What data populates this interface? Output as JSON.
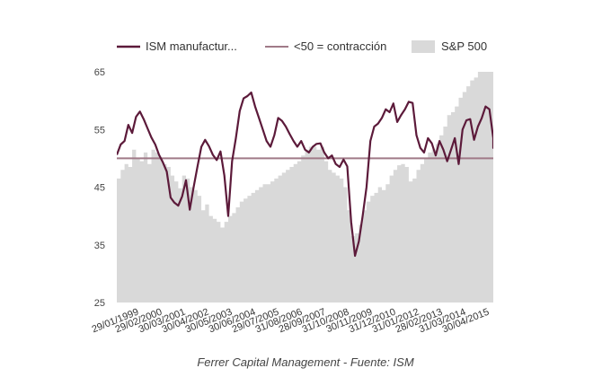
{
  "chart_data": {
    "type": "line",
    "title": "",
    "xlabel": "",
    "ylabel": "",
    "ylim": [
      25,
      65
    ],
    "yticks": [
      65,
      55,
      45,
      35,
      25
    ],
    "grid": false,
    "legend_placement": "top",
    "footer": "Ferrer Capital Management - Fuente: ISM",
    "x_tick_labels": [
      "29/01/1999",
      "29/02/2000",
      "30/03/2001",
      "30/04/2002",
      "30/05/2003",
      "30/06/2004",
      "29/07/2005",
      "31/08/2006",
      "28/09/2007",
      "31/10/2008",
      "30/11/2009",
      "31/12/2010",
      "31/01/2012",
      "28/02/2013",
      "31/03/2014",
      "30/04/2015"
    ],
    "x_start": "1999-01",
    "x_end": "2015-05",
    "colors": {
      "ism": "#5c1a3a",
      "threshold": "#a07a88",
      "sp500": "#d9d9d9"
    },
    "legend": [
      {
        "name": "ISM manufactur...",
        "kind": "line",
        "color": "#5c1a3a"
      },
      {
        "name": "<50 = contracción",
        "kind": "line",
        "color": "#a07a88"
      },
      {
        "name": "S&P 500",
        "kind": "area",
        "color": "#d9d9d9"
      }
    ],
    "threshold": {
      "name": "<50 = contracción",
      "value": 50
    },
    "series": [
      {
        "name": "ISM manufactur...",
        "type": "line",
        "note": "monthly values from 1999-01, every 2 months",
        "step_months": 2,
        "values": [
          50.6,
          52.4,
          53.0,
          55.8,
          54.4,
          57.2,
          58.1,
          56.8,
          55.2,
          53.6,
          52.4,
          50.6,
          49.3,
          47.7,
          43.2,
          42.3,
          41.8,
          43.4,
          46.2,
          41.1,
          45.0,
          48.6,
          52.0,
          53.2,
          52.1,
          50.6,
          49.7,
          51.2,
          47.0,
          40.0,
          49.5,
          53.5,
          58.2,
          60.4,
          60.8,
          61.4,
          59.0,
          57.0,
          55.0,
          53.0,
          52.0,
          54.0,
          57.0,
          56.5,
          55.5,
          54.2,
          53.0,
          52.0,
          53.0,
          51.5,
          51.0,
          52.0,
          52.5,
          52.6,
          51.0,
          50.0,
          50.5,
          49.0,
          48.5,
          49.8,
          48.6,
          39.0,
          33.1,
          35.6,
          40.0,
          45.0,
          53.0,
          55.5,
          56.0,
          57.0,
          58.5,
          58.0,
          59.5,
          56.3,
          57.5,
          58.5,
          59.8,
          59.6,
          54.0,
          51.8,
          51.0,
          53.5,
          52.6,
          50.5,
          53.0,
          51.5,
          49.5,
          51.5,
          53.5,
          49.0,
          55.0,
          56.6,
          56.8,
          53.2,
          55.5,
          57.0,
          59.0,
          58.5,
          53.5,
          51.8,
          53.0,
          53.5,
          52.8,
          52.0,
          52.8
        ]
      },
      {
        "name": "S&P 500",
        "type": "area",
        "note": "plotted on shared visual scale (left axis units), every 2 months",
        "step_months": 2,
        "values": [
          46.5,
          48.0,
          49.0,
          48.5,
          51.5,
          50.0,
          49.5,
          51.0,
          49.0,
          51.5,
          51.0,
          50.0,
          49.0,
          48.5,
          47.0,
          46.0,
          44.8,
          47.0,
          46.5,
          45.0,
          44.5,
          43.5,
          41.0,
          42.0,
          40.0,
          39.5,
          39.0,
          38.0,
          39.0,
          40.0,
          40.5,
          41.5,
          42.5,
          43.0,
          43.5,
          44.0,
          44.5,
          45.0,
          45.5,
          45.5,
          46.0,
          46.5,
          47.0,
          47.5,
          48.0,
          48.5,
          49.0,
          49.5,
          50.5,
          51.5,
          52.0,
          52.0,
          51.5,
          52.0,
          49.5,
          48.0,
          47.5,
          47.0,
          46.5,
          45.0,
          41.0,
          36.5,
          37.0,
          38.5,
          41.0,
          42.5,
          43.5,
          44.0,
          45.0,
          44.5,
          45.5,
          47.0,
          48.0,
          48.8,
          49.0,
          48.5,
          46.0,
          46.5,
          48.0,
          49.0,
          50.0,
          51.0,
          51.5,
          52.5,
          54.0,
          55.5,
          57.5,
          58.0,
          59.0,
          60.5,
          61.5,
          62.5,
          63.5,
          64.0,
          65.5,
          66.5,
          67.0,
          67.0,
          66.0,
          65.5,
          64.0,
          63.5,
          62.8,
          64.2,
          66.0
        ]
      }
    ]
  }
}
